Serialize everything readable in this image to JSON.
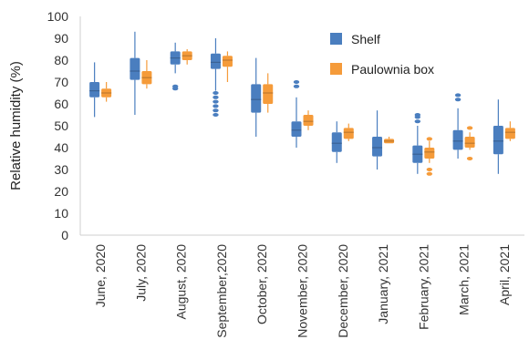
{
  "chart_data": {
    "type": "box",
    "title": "",
    "xlabel": "",
    "ylabel": "Relative humidity (%)",
    "ylim": [
      0,
      100
    ],
    "yticks": [
      0,
      10,
      20,
      30,
      40,
      50,
      60,
      70,
      80,
      90,
      100
    ],
    "grid": false,
    "legend_position": "top-right",
    "categories": [
      "June, 2020",
      "July, 2020",
      "August, 2020",
      "September,2020",
      "October, 2020",
      "November, 2020",
      "December, 2020",
      "January, 2021",
      "February, 2021",
      "March, 2021",
      "April, 2021"
    ],
    "series": [
      {
        "name": "Shelf",
        "color": "#4a7ebf",
        "boxes": [
          {
            "whisker_low": 54,
            "q1": 63,
            "median": 66,
            "q3": 70,
            "whisker_high": 79,
            "outliers": []
          },
          {
            "whisker_low": 55,
            "q1": 71,
            "median": 75,
            "q3": 81,
            "whisker_high": 93,
            "outliers": []
          },
          {
            "whisker_low": 74,
            "q1": 78,
            "median": 81,
            "q3": 84,
            "whisker_high": 88,
            "outliers": [
              67,
              68
            ]
          },
          {
            "whisker_low": 66,
            "q1": 76,
            "median": 79,
            "q3": 83,
            "whisker_high": 90,
            "outliers": [
              55,
              57,
              59,
              61,
              63,
              65
            ]
          },
          {
            "whisker_low": 45,
            "q1": 56,
            "median": 62,
            "q3": 69,
            "whisker_high": 81,
            "outliers": []
          },
          {
            "whisker_low": 40,
            "q1": 45,
            "median": 48,
            "q3": 52,
            "whisker_high": 63,
            "outliers": [
              68,
              70
            ]
          },
          {
            "whisker_low": 33,
            "q1": 38,
            "median": 42,
            "q3": 47,
            "whisker_high": 52,
            "outliers": []
          },
          {
            "whisker_low": 30,
            "q1": 36,
            "median": 40,
            "q3": 45,
            "whisker_high": 57,
            "outliers": []
          },
          {
            "whisker_low": 28,
            "q1": 33,
            "median": 37,
            "q3": 41,
            "whisker_high": 50,
            "outliers": [
              52,
              54,
              55
            ]
          },
          {
            "whisker_low": 35,
            "q1": 39,
            "median": 43,
            "q3": 48,
            "whisker_high": 58,
            "outliers": [
              62,
              64
            ]
          },
          {
            "whisker_low": 28,
            "q1": 37,
            "median": 43,
            "q3": 50,
            "whisker_high": 62,
            "outliers": []
          }
        ]
      },
      {
        "name": "Paulownia box",
        "color": "#f59b3a",
        "boxes": [
          {
            "whisker_low": 61,
            "q1": 63,
            "median": 65,
            "q3": 67,
            "whisker_high": 70,
            "outliers": []
          },
          {
            "whisker_low": 67,
            "q1": 69,
            "median": 72,
            "q3": 75,
            "whisker_high": 80,
            "outliers": []
          },
          {
            "whisker_low": 78,
            "q1": 80,
            "median": 82,
            "q3": 84,
            "whisker_high": 85,
            "outliers": []
          },
          {
            "whisker_low": 70,
            "q1": 77,
            "median": 80,
            "q3": 82,
            "whisker_high": 84,
            "outliers": []
          },
          {
            "whisker_low": 56,
            "q1": 60,
            "median": 65,
            "q3": 69,
            "whisker_high": 74,
            "outliers": []
          },
          {
            "whisker_low": 48,
            "q1": 50,
            "median": 52,
            "q3": 55,
            "whisker_high": 57,
            "outliers": []
          },
          {
            "whisker_low": 43,
            "q1": 44,
            "median": 47,
            "q3": 49,
            "whisker_high": 51,
            "outliers": []
          },
          {
            "whisker_low": 42,
            "q1": 42,
            "median": 43,
            "q3": 44,
            "whisker_high": 45,
            "outliers": []
          },
          {
            "whisker_low": 33,
            "q1": 35,
            "median": 38,
            "q3": 40,
            "whisker_high": 43,
            "outliers": [
              28,
              30,
              44
            ]
          },
          {
            "whisker_low": 39,
            "q1": 40,
            "median": 42,
            "q3": 45,
            "whisker_high": 47,
            "outliers": [
              35,
              49
            ]
          },
          {
            "whisker_low": 43,
            "q1": 44,
            "median": 47,
            "q3": 49,
            "whisker_high": 52,
            "outliers": []
          }
        ]
      }
    ]
  }
}
